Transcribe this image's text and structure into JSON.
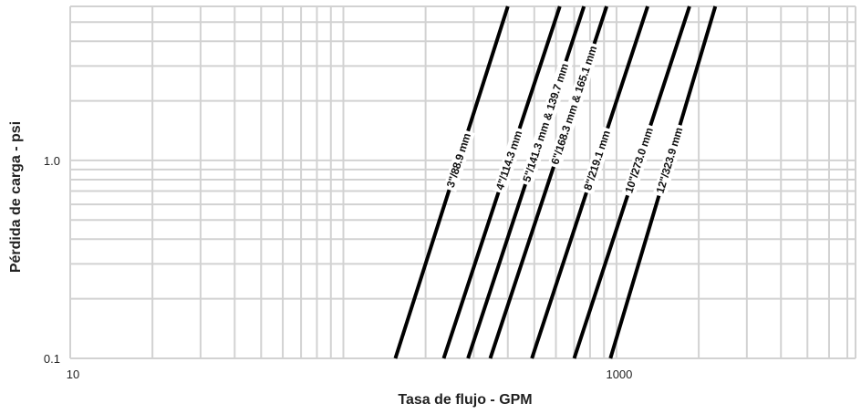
{
  "chart_data": {
    "type": "line",
    "title": "",
    "xlabel": "Tasa de flujo - GPM",
    "ylabel": "Pérdida de carga - psi",
    "xscale": "log",
    "yscale": "log",
    "xlim": [
      10,
      7500
    ],
    "ylim": [
      0.1,
      6
    ],
    "x_tick_labels": [
      {
        "value": 10,
        "label": "10"
      },
      {
        "value": 1000,
        "label": "1000"
      }
    ],
    "y_tick_labels": [
      {
        "value": 0.1,
        "label": "0.1"
      },
      {
        "value": 1.0,
        "label": "1.0"
      }
    ],
    "grid": true,
    "legend": "none",
    "series": [
      {
        "name": "3\"/88.9 mm",
        "x": [
          155,
          400
        ],
        "y": [
          0.1,
          6
        ],
        "label_at": {
          "x": 290,
          "y": 1.0
        }
      },
      {
        "name": "4\"/114.3 mm",
        "x": [
          233,
          620
        ],
        "y": [
          0.1,
          6
        ],
        "label_at": {
          "x": 470,
          "y": 1.0
        }
      },
      {
        "name": "5\"/141.3 mm & 139.7 mm",
        "x": [
          286,
          760
        ],
        "y": [
          0.1,
          6
        ],
        "label_at": {
          "x": 650,
          "y": 1.55
        }
      },
      {
        "name": "6\"/168.3 mm & 165.1 mm",
        "x": [
          345,
          920
        ],
        "y": [
          0.1,
          6
        ],
        "label_at": {
          "x": 830,
          "y": 1.9
        }
      },
      {
        "name": "8\"/219.1 mm",
        "x": [
          490,
          1300
        ],
        "y": [
          0.1,
          6
        ],
        "label_at": {
          "x": 990,
          "y": 1.0
        }
      },
      {
        "name": "10\"/273.0 mm",
        "x": [
          700,
          1850
        ],
        "y": [
          0.1,
          6
        ],
        "label_at": {
          "x": 1500,
          "y": 1.0
        }
      },
      {
        "name": "12\"/323.9 mm",
        "x": [
          950,
          2300
        ],
        "y": [
          0.1,
          6
        ],
        "label_at": {
          "x": 1900,
          "y": 1.0
        }
      }
    ]
  }
}
